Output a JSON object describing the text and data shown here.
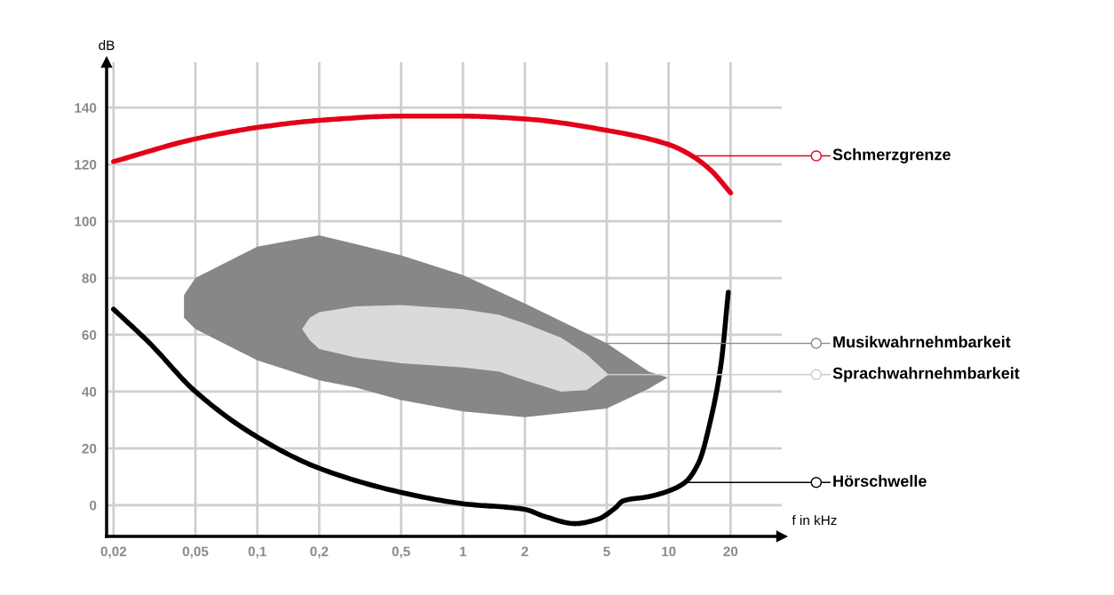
{
  "chart_data": {
    "type": "line",
    "xlabel": "f in kHz",
    "ylabel": "dB",
    "log": "x",
    "grid": true,
    "legend": "right",
    "xlim": [
      0.0185,
      35.5
    ],
    "ylim": [
      -11,
      156
    ],
    "xticks": [
      {
        "value": 0.02,
        "label": "0,02"
      },
      {
        "value": 0.05,
        "label": "0,05"
      },
      {
        "value": 0.1,
        "label": "0,1"
      },
      {
        "value": 0.2,
        "label": "0,2"
      },
      {
        "value": 0.5,
        "label": "0,5"
      },
      1,
      2,
      5,
      10,
      20
    ],
    "yticks": [
      0,
      20,
      40,
      60,
      80,
      100,
      120,
      140
    ],
    "series": [
      {
        "name": "Schmerzgrenze",
        "color": "#e2001a",
        "x": [
          0.02,
          0.05,
          0.1,
          0.2,
          0.5,
          1,
          2,
          5,
          10,
          13,
          16,
          20
        ],
        "values": [
          121,
          129,
          133,
          135.5,
          137,
          137,
          136,
          132,
          127,
          123,
          118,
          110
        ]
      },
      {
        "name": "Musikwahrnehmbarkeit",
        "type": "area",
        "color": "#878787",
        "x": [
          0.044,
          0.05,
          0.1,
          0.2,
          0.3,
          0.5,
          1,
          2,
          5,
          8,
          9.9
        ],
        "values": [
          null,
          null,
          null,
          null,
          null,
          null,
          null,
          null,
          null,
          null,
          null
        ],
        "lower": [
          66,
          62,
          51,
          44,
          41.5,
          37,
          33,
          31,
          34,
          41,
          45
        ],
        "upper": [
          74,
          80,
          91,
          95,
          92,
          88,
          81,
          71,
          57,
          47,
          45
        ]
      },
      {
        "name": "Sprachwahrnehmbarkeit",
        "type": "area",
        "color": "#dadada",
        "x": [
          0.165,
          0.18,
          0.2,
          0.3,
          0.5,
          1,
          1.5,
          2,
          3,
          4,
          5.1
        ],
        "values": [
          null,
          null,
          null,
          null,
          null,
          null,
          null,
          null,
          null,
          null,
          null
        ],
        "lower": [
          62,
          58,
          55,
          52,
          50,
          48.5,
          47,
          44,
          40,
          40.5,
          46
        ],
        "upper": [
          62,
          66,
          68,
          70,
          70.5,
          69,
          67,
          64,
          59,
          53,
          46
        ]
      },
      {
        "name": "Hörschwelle",
        "color": "#000000",
        "x": [
          0.02,
          0.03,
          0.05,
          0.1,
          0.2,
          0.5,
          1,
          2,
          2.5,
          3.5,
          4.5,
          5.5,
          6,
          8,
          10,
          12,
          14,
          16,
          18,
          19.5
        ],
        "values": [
          69,
          57,
          40,
          24,
          13,
          4.5,
          0.5,
          -1.5,
          -4,
          -6.5,
          -5,
          -1,
          1.5,
          3,
          5,
          8,
          15,
          30,
          50,
          75
        ]
      }
    ]
  }
}
